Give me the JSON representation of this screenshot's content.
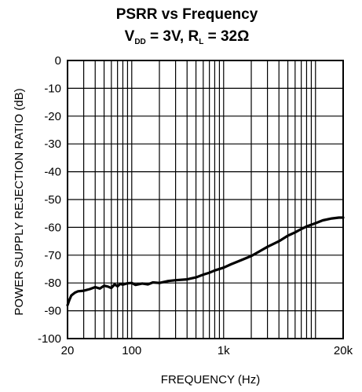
{
  "chart_data": {
    "type": "line",
    "title": {
      "line1": "PSRR vs Frequency",
      "v": "V",
      "v_sub": "DD",
      "v_rest": " = 3V, R",
      "r_sub": "L",
      "r_rest": " = 32Ω"
    },
    "xlabel": "FREQUENCY (Hz)",
    "ylabel": "POWER SUPPLY REJECTION RATIO (dB)",
    "x_scale": "log",
    "xlim": [
      20,
      20000
    ],
    "ylim": [
      -100,
      0
    ],
    "grid": true,
    "x_tick_labels": [
      {
        "value": 20,
        "label": "20"
      },
      {
        "value": 100,
        "label": "100"
      },
      {
        "value": 1000,
        "label": "1k"
      },
      {
        "value": 20000,
        "label": "20k"
      }
    ],
    "y_ticks": [
      0,
      -10,
      -20,
      -30,
      -40,
      -50,
      -60,
      -70,
      -80,
      -90,
      -100
    ],
    "y_tick_labels": [
      "0",
      "-10",
      "-20",
      "-30",
      "-40",
      "-50",
      "-60",
      "-70",
      "-80",
      "-90",
      "-100"
    ],
    "series": [
      {
        "x": [
          20,
          21,
          22,
          24,
          26,
          30,
          35,
          40,
          45,
          50,
          55,
          60,
          65,
          70,
          75,
          80,
          90,
          100,
          110,
          130,
          150,
          170,
          200,
          250,
          300,
          400,
          500,
          600,
          700,
          800,
          1000,
          1200,
          1500,
          2000,
          2500,
          3000,
          4000,
          5000,
          6000,
          7000,
          8000,
          10000,
          12000,
          15000,
          18000,
          20000
        ],
        "y": [
          -88,
          -86,
          -84.5,
          -83.5,
          -83,
          -82.8,
          -82.2,
          -81.5,
          -82,
          -81,
          -81.3,
          -81.8,
          -80.5,
          -81.2,
          -80.3,
          -80.6,
          -80.1,
          -80,
          -80.7,
          -80.2,
          -80.5,
          -79.8,
          -80,
          -79.3,
          -79,
          -78.7,
          -78,
          -77,
          -76.3,
          -75.5,
          -74.5,
          -73.3,
          -72,
          -70.3,
          -68.5,
          -67,
          -65,
          -63,
          -61.8,
          -60.6,
          -59.7,
          -58.5,
          -57.5,
          -56.8,
          -56.5,
          -56.5
        ]
      }
    ]
  }
}
